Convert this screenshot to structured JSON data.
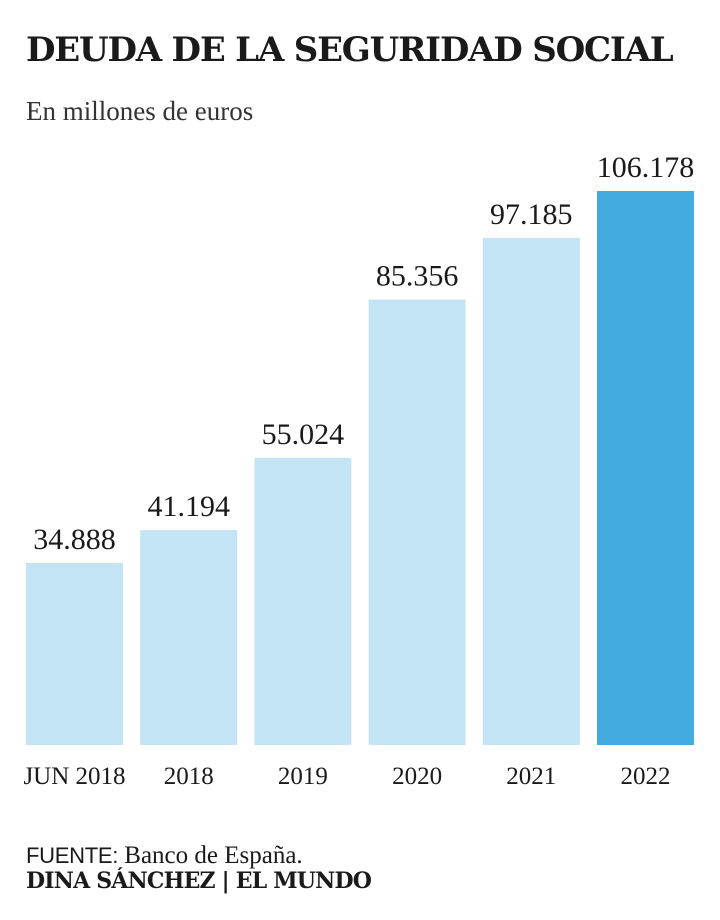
{
  "title": "DEUDA DE LA SEGURIDAD SOCIAL",
  "subtitle": "En millones de euros",
  "colors": {
    "bar": "#c3e4f5",
    "highlight": "#43abdf",
    "text": "#1a1a1a"
  },
  "chart_data": {
    "type": "bar",
    "categories": [
      "JUN 2018",
      "2018",
      "2019",
      "2020",
      "2021",
      "2022"
    ],
    "values": [
      34888,
      41194,
      55024,
      85356,
      97185,
      106178
    ],
    "labels": [
      "34.888",
      "41.194",
      "55.024",
      "85.356",
      "97.185",
      "106.178"
    ],
    "highlight_index": 5,
    "ylim": [
      0,
      106178
    ]
  },
  "footer": {
    "source_label": "FUENTE:",
    "source_text": "Banco de España.",
    "credit": "DINA SÁNCHEZ | EL MUNDO"
  }
}
